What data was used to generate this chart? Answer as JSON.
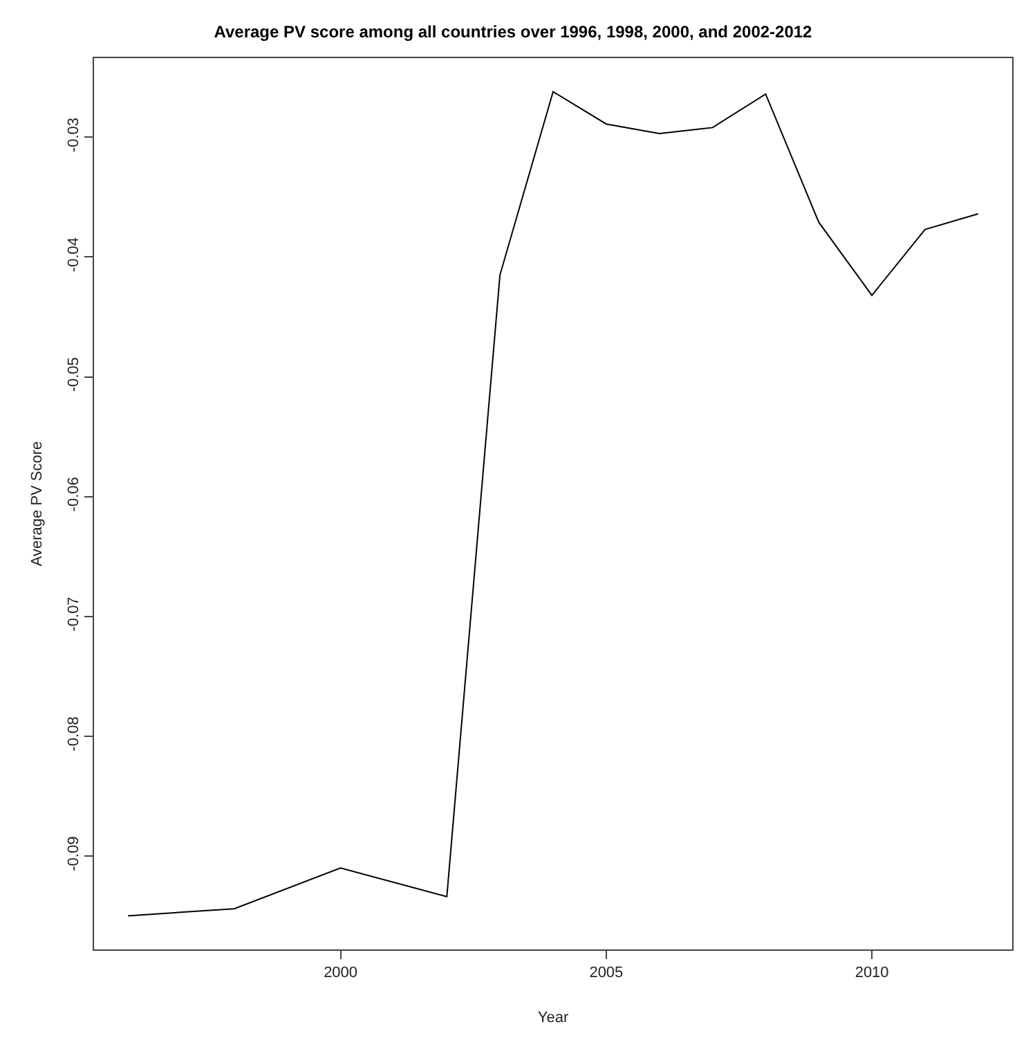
{
  "chart_data": {
    "type": "line",
    "title": "Average PV score among all countries over 1996, 1998, 2000, and 2002-2012",
    "xlabel": "Year",
    "ylabel": "Average PV Score",
    "x": [
      1996,
      1998,
      2000,
      2002,
      2003,
      2004,
      2005,
      2006,
      2007,
      2008,
      2009,
      2010,
      2011,
      2012
    ],
    "series": [
      {
        "color": "#000000",
        "values": [
          -0.095,
          -0.0944,
          -0.091,
          -0.0934,
          -0.0415,
          -0.0262,
          -0.0289,
          -0.0297,
          -0.0292,
          -0.0264,
          -0.0371,
          -0.0432,
          -0.0377,
          -0.0364
        ]
      }
    ],
    "xlim": [
      1995.36,
      2012.64
    ],
    "xticks": [
      2000,
      2005,
      2010
    ],
    "ylim": [
      -0.0978,
      -0.0234
    ],
    "yticks": [
      -0.09,
      -0.08,
      -0.07,
      -0.06,
      -0.05,
      -0.04,
      -0.03
    ],
    "marker": "none",
    "line_style": "solid"
  }
}
